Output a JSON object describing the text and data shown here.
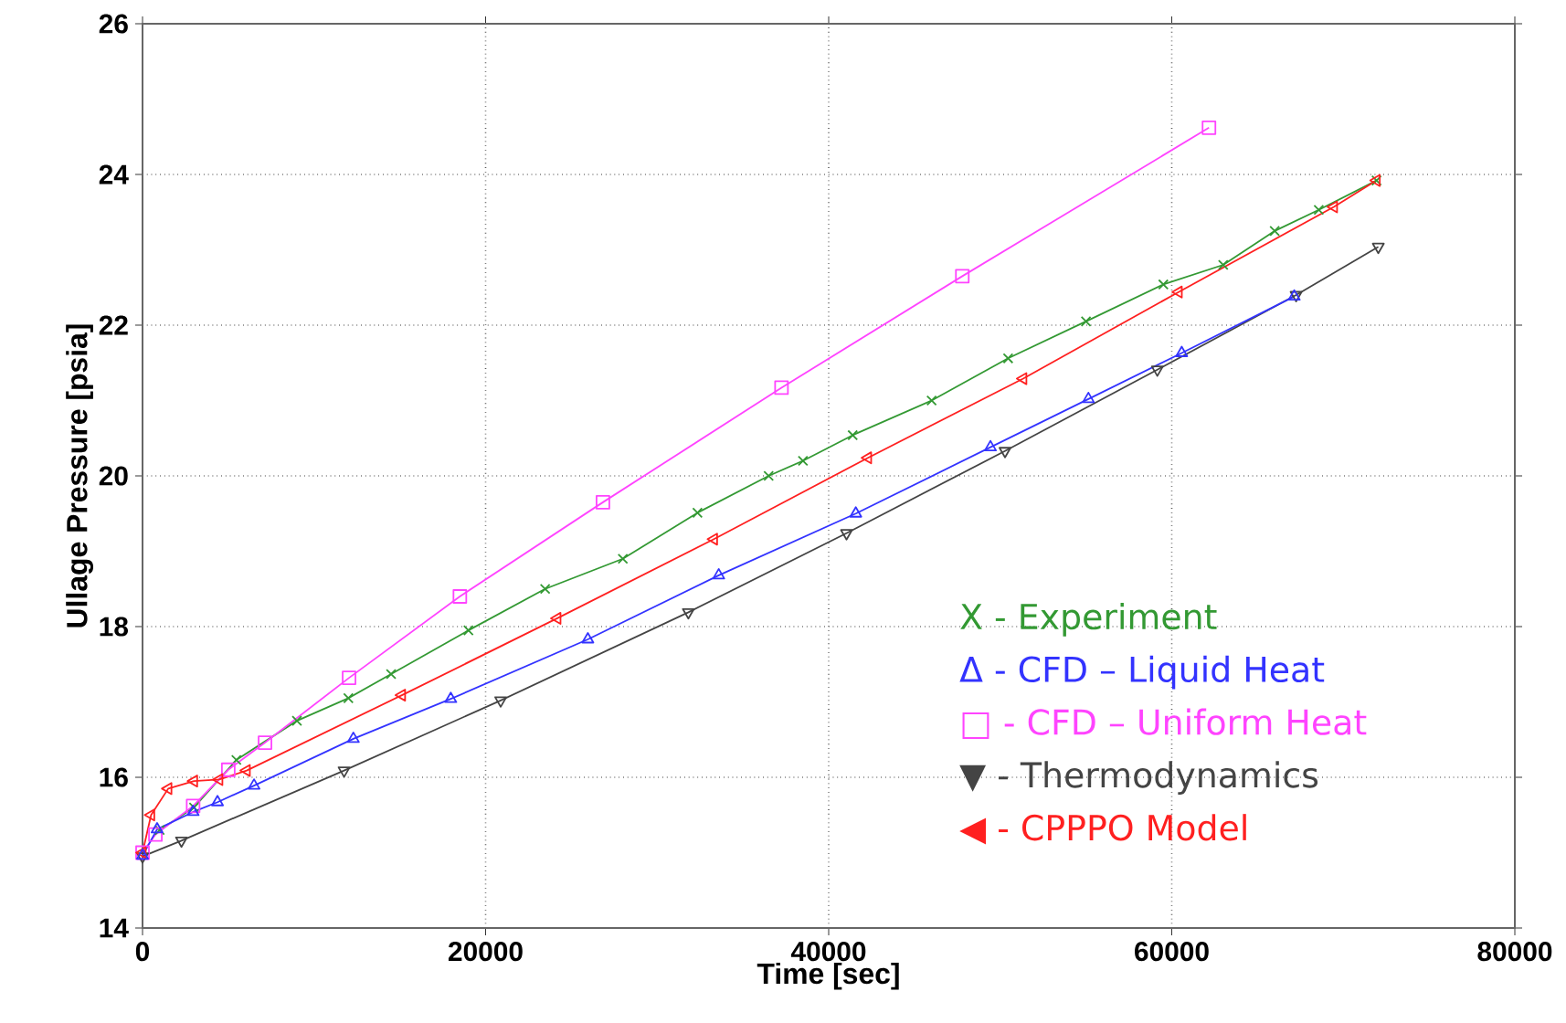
{
  "chart_data": {
    "type": "line",
    "xlabel": "Time [sec]",
    "ylabel": "Ullage Pressure [psia]",
    "xlim": [
      0,
      80000
    ],
    "ylim": [
      14,
      26
    ],
    "xticks": [
      0,
      20000,
      40000,
      60000,
      80000
    ],
    "yticks": [
      14,
      16,
      18,
      20,
      22,
      24,
      26
    ],
    "grid": true,
    "legend": "bottom right",
    "line_style": "solid",
    "series": [
      {
        "name": "X - Experiment",
        "color": "#339933",
        "marker": "cross",
        "x": [
          1000,
          3000,
          5470,
          9000,
          12000,
          14490,
          19000,
          23470,
          28000,
          32350,
          36500,
          38500,
          41400,
          46000,
          50460,
          55000,
          59510,
          63000,
          66000,
          68570,
          71940
        ],
        "values": [
          15.3,
          15.6,
          16.23,
          16.75,
          17.05,
          17.37,
          17.95,
          18.5,
          18.9,
          19.51,
          20.0,
          20.2,
          20.54,
          21.0,
          21.56,
          22.05,
          22.54,
          22.8,
          23.25,
          23.53,
          23.92
        ]
      },
      {
        "name": "Δ - CFD – Liquid Heat",
        "color": "#3333ff",
        "marker": "triangle",
        "x": [
          0,
          850,
          2950,
          4370,
          6500,
          12290,
          17970,
          25960,
          33590,
          41580,
          49430,
          55140,
          60580,
          67140
        ],
        "values": [
          14.96,
          15.31,
          15.54,
          15.67,
          15.89,
          16.51,
          17.04,
          17.83,
          18.68,
          19.5,
          20.38,
          21.02,
          21.63,
          22.38
        ]
      },
      {
        "name": "□ - CFD – Uniform Heat",
        "color": "#ff44ff",
        "marker": "square",
        "x": [
          0,
          750,
          2950,
          5000,
          7140,
          12040,
          18500,
          26840,
          37250,
          47790,
          62170
        ],
        "values": [
          15.0,
          15.24,
          15.62,
          16.1,
          16.46,
          17.32,
          18.4,
          19.65,
          21.17,
          22.65,
          24.62
        ]
      },
      {
        "name": "▼ - Thermodynamics",
        "color": "#444444",
        "marker": "triangle down",
        "x": [
          0,
          2270,
          11750,
          20880,
          31820,
          41040,
          50280,
          59160,
          67250,
          72040
        ],
        "values": [
          14.95,
          15.16,
          16.09,
          17.02,
          18.19,
          19.24,
          20.33,
          21.41,
          22.4,
          23.04
        ]
      },
      {
        "name": "◀ - CPPPO Model",
        "color": "#ff2020",
        "marker": "triangle left",
        "x": [
          0,
          500,
          1500,
          3000,
          4470,
          6070,
          15120,
          24180,
          33310,
          42290,
          51340,
          60400,
          69450,
          71940
        ],
        "values": [
          15.0,
          15.5,
          15.85,
          15.95,
          15.97,
          16.09,
          17.09,
          18.11,
          19.16,
          20.24,
          21.29,
          22.44,
          23.57,
          23.92
        ]
      }
    ]
  }
}
